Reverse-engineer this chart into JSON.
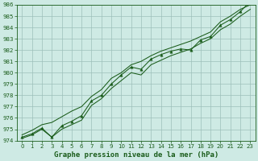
{
  "title": "Graphe pression niveau de la mer (hPa)",
  "x_values": [
    0,
    1,
    2,
    3,
    4,
    5,
    6,
    7,
    8,
    9,
    10,
    11,
    12,
    13,
    14,
    15,
    16,
    17,
    18,
    19,
    20,
    21,
    22,
    23
  ],
  "y_main": [
    974.3,
    974.6,
    975.1,
    974.3,
    975.3,
    975.7,
    976.2,
    977.5,
    978.0,
    979.0,
    979.8,
    980.5,
    980.3,
    981.2,
    981.6,
    981.9,
    982.1,
    982.0,
    982.9,
    983.2,
    984.2,
    984.7,
    985.4,
    986.3
  ],
  "y_upper": [
    974.5,
    974.9,
    975.4,
    975.6,
    976.1,
    976.6,
    977.0,
    977.9,
    978.5,
    979.5,
    980.0,
    980.7,
    981.0,
    981.5,
    981.9,
    982.2,
    982.5,
    982.8,
    983.2,
    983.6,
    984.5,
    985.0,
    985.6,
    986.0
  ],
  "y_lower": [
    974.2,
    974.5,
    975.0,
    974.3,
    975.0,
    975.4,
    975.8,
    977.1,
    977.7,
    978.6,
    979.3,
    980.0,
    979.8,
    980.7,
    981.1,
    981.5,
    981.8,
    982.1,
    982.6,
    983.0,
    983.8,
    984.3,
    985.0,
    985.6
  ],
  "ylim": [
    974,
    986
  ],
  "yticks": [
    974,
    975,
    976,
    977,
    978,
    979,
    980,
    981,
    982,
    983,
    984,
    985,
    986
  ],
  "xticks": [
    0,
    1,
    2,
    3,
    4,
    5,
    6,
    7,
    8,
    9,
    10,
    11,
    12,
    13,
    14,
    15,
    16,
    17,
    18,
    19,
    20,
    21,
    22,
    23
  ],
  "bg_color": "#ceeae4",
  "grid_color": "#9dbfba",
  "line_color": "#1a5c1a",
  "marker_color": "#1a5c1a",
  "text_color": "#1a5c1a",
  "title_fontsize": 6.5,
  "tick_fontsize": 5.0
}
